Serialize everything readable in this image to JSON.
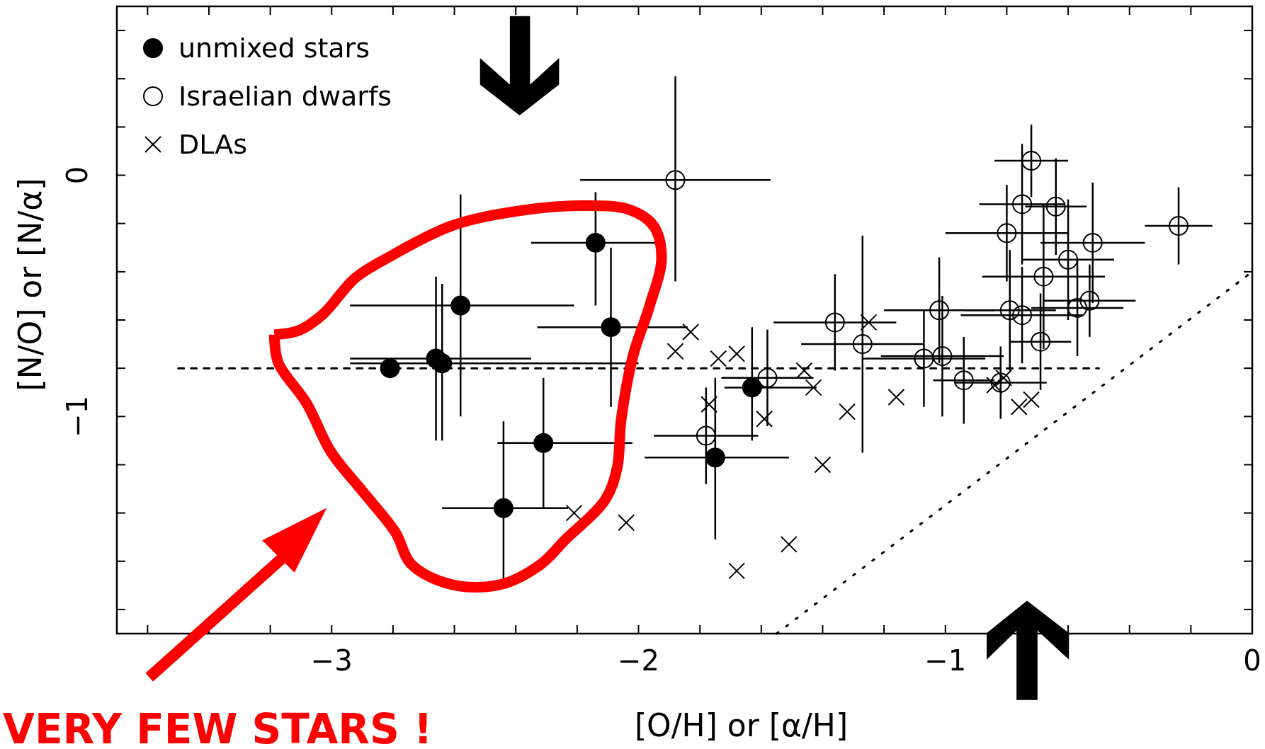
{
  "chart_data": {
    "type": "scatter",
    "xlabel": "[O/H] or [α/H]",
    "ylabel": "[N/O] or [N/α]",
    "xlim": [
      -3.7,
      0
    ],
    "ylim": [
      -1.9,
      0.7
    ],
    "xticks": [
      {
        "value": -3.6,
        "label": null
      },
      {
        "value": -3.4,
        "label": null
      },
      {
        "value": -3.2,
        "label": null
      },
      {
        "value": -3,
        "label": "−3"
      },
      {
        "value": -2.8,
        "label": null
      },
      {
        "value": -2.6,
        "label": null
      },
      {
        "value": -2.4,
        "label": null
      },
      {
        "value": -2.2,
        "label": null
      },
      {
        "value": -2,
        "label": "−2"
      },
      {
        "value": -1.8,
        "label": null
      },
      {
        "value": -1.6,
        "label": null
      },
      {
        "value": -1.4,
        "label": null
      },
      {
        "value": -1.2,
        "label": null
      },
      {
        "value": -1,
        "label": "−1"
      },
      {
        "value": -0.8,
        "label": null
      },
      {
        "value": -0.6,
        "label": null
      },
      {
        "value": -0.4,
        "label": null
      },
      {
        "value": -0.2,
        "label": null
      },
      {
        "value": 0,
        "label": "0"
      }
    ],
    "yticks": [
      {
        "value": -1.8,
        "label": null
      },
      {
        "value": -1.6,
        "label": null
      },
      {
        "value": -1.4,
        "label": null
      },
      {
        "value": -1.2,
        "label": null
      },
      {
        "value": -1,
        "label": "−1"
      },
      {
        "value": -0.8,
        "label": null
      },
      {
        "value": -0.6,
        "label": null
      },
      {
        "value": -0.4,
        "label": null
      },
      {
        "value": -0.2,
        "label": null
      },
      {
        "value": 0,
        "label": "0"
      },
      {
        "value": 0.2,
        "label": null
      },
      {
        "value": 0.4,
        "label": null
      },
      {
        "value": 0.6,
        "label": null
      }
    ],
    "grid": false,
    "legend": "top left",
    "annotations": [
      "VERY FEW STARS !"
    ],
    "series": [
      {
        "type": "line",
        "color": "#000000",
        "line_style": "dashed",
        "marker": "none",
        "x": [
          -3.5,
          -0.5
        ],
        "values": [
          -0.8,
          -0.8
        ]
      },
      {
        "type": "line",
        "color": "#000000",
        "line_style": "dotted",
        "marker": "none",
        "x": [
          -1.55,
          0
        ],
        "values": [
          -1.9,
          -0.4
        ]
      },
      {
        "name": "unmixed stars",
        "type": "scatter",
        "color": "#000000",
        "marker": "circle",
        "x": [
          -2.81,
          -2.66,
          -2.64,
          -2.58,
          -2.14,
          -2.09,
          -2.31,
          -2.44,
          -1.63,
          -1.75
        ],
        "values": [
          -0.8,
          -0.76,
          -0.78,
          -0.54,
          -0.28,
          -0.63,
          -1.11,
          -1.38,
          -0.88,
          -1.17
        ],
        "errors": [
          null,
          [
            -1.1,
            -0.42
          ],
          [
            -1.1,
            -0.45
          ],
          [
            -1.0,
            -0.08
          ],
          [
            -0.54,
            -0.07
          ],
          [
            -0.96,
            -0.3
          ],
          [
            -1.38,
            -0.84
          ],
          [
            -1.68,
            -1.02
          ],
          [
            -1.1,
            -0.63
          ],
          [
            -1.51,
            -0.84
          ]
        ],
        "xerrors": [
          null,
          [
            -2.94,
            -2.35
          ],
          [
            -2.94,
            -2.0
          ],
          [
            -2.94,
            -2.21
          ],
          [
            -2.35,
            -1.92
          ],
          [
            -2.33,
            -1.84
          ],
          [
            -2.46,
            -2.02
          ],
          [
            -2.64,
            -2.23
          ],
          [
            -1.72,
            -1.42
          ],
          [
            -1.98,
            -1.51
          ]
        ]
      },
      {
        "name": "Israelian dwarfs",
        "type": "scatter",
        "color": "#000000",
        "marker": "circle-open",
        "x": [
          -1.88,
          -0.72,
          -0.75,
          -0.64,
          -0.8,
          -0.24,
          -0.52,
          -0.6,
          -0.68,
          -1.02,
          -1.36,
          -1.27,
          -0.79,
          -0.75,
          -0.53,
          -0.57,
          -0.69,
          -1.07,
          -1.01,
          -0.94,
          -0.82,
          -1.58,
          -1.78
        ],
        "values": [
          -0.02,
          0.06,
          -0.12,
          -0.13,
          -0.24,
          -0.21,
          -0.28,
          -0.35,
          -0.42,
          -0.56,
          -0.61,
          -0.7,
          -0.56,
          -0.58,
          -0.52,
          -0.55,
          -0.69,
          -0.76,
          -0.75,
          -0.85,
          -0.86,
          -0.84,
          -1.08
        ],
        "errors": [
          [
            -0.44,
            0.41
          ],
          0.15,
          0.25,
          0.2,
          0.2,
          0.16,
          0.25,
          0.25,
          0.3,
          0.22,
          0.2,
          0.45,
          0.25,
          0.2,
          0.15,
          0.2,
          0.2,
          0.2,
          0.25,
          0.18,
          0.15,
          0.2,
          0.2
        ],
        "xerrors": [
          [
            -2.19,
            -1.57
          ],
          0.12,
          0.14,
          0.1,
          0.2,
          0.11,
          0.17,
          0.15,
          0.2,
          0.18,
          0.2,
          0.2,
          0.15,
          0.2,
          0.15,
          0.15,
          0.1,
          0.2,
          0.2,
          0.1,
          0.15,
          0.15,
          0.17
        ]
      },
      {
        "name": "DLAs",
        "type": "scatter",
        "color": "#000000",
        "marker": "cross",
        "x": [
          -1.83,
          -1.88,
          -1.74,
          -1.68,
          -1.46,
          -1.43,
          -1.25,
          -1.59,
          -1.77,
          -1.32,
          -1.16,
          -1.4,
          -1.51,
          -1.68,
          -2.04,
          -2.21,
          -0.84,
          -0.81,
          -0.76,
          -0.72
        ],
        "values": [
          -0.65,
          -0.73,
          -0.76,
          -0.74,
          -0.81,
          -0.88,
          -0.61,
          -1.01,
          -0.95,
          -0.98,
          -0.92,
          -1.2,
          -1.53,
          -1.64,
          -1.44,
          -1.4,
          -0.87,
          -0.84,
          -0.96,
          -0.93
        ]
      }
    ]
  }
}
